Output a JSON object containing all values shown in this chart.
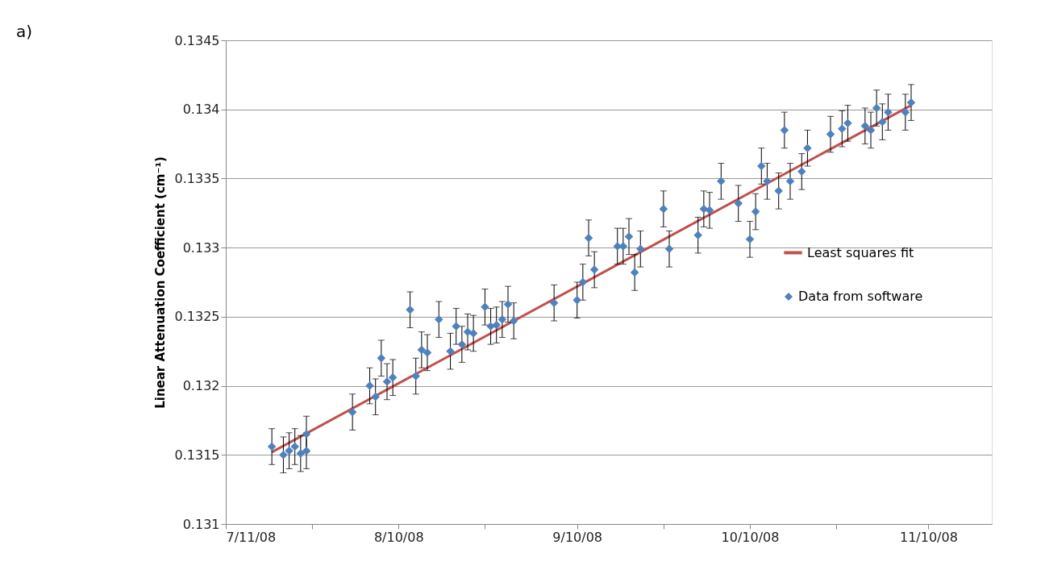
{
  "chart_data": {
    "type": "scatter",
    "ylabel": "Linear Attenuation  Coefficient (cm⁻¹)",
    "annotations": [
      "a)"
    ],
    "xlim": [
      "2008-07-11",
      "2008-11-21"
    ],
    "xticks": [
      {
        "value": "2008-07-11",
        "label": "7/11/08"
      },
      {
        "value": "2008-07-26",
        "label": null
      },
      {
        "value": "2008-08-10",
        "label": "8/10/08"
      },
      {
        "value": "2008-08-25",
        "label": null
      },
      {
        "value": "2008-09-10",
        "label": "9/10/08"
      },
      {
        "value": "2008-09-25",
        "label": null
      },
      {
        "value": "2008-10-10",
        "label": "10/10/08"
      },
      {
        "value": "2008-10-25",
        "label": null
      },
      {
        "value": "2008-11-10",
        "label": "11/10/08"
      }
    ],
    "ylim": [
      0.131,
      0.1345
    ],
    "yticks": [
      0.131,
      0.1315,
      0.132,
      0.1325,
      0.133,
      0.1335,
      0.134,
      0.1345
    ],
    "grid": "y",
    "legend": "right",
    "line_style": "solid",
    "series": [
      {
        "name": "Least squares fit",
        "type": "line",
        "color": "#c0504d",
        "x": [
          "2008-07-19",
          "2008-11-07"
        ],
        "values": [
          0.13152,
          0.13403
        ],
        "marker": "none"
      },
      {
        "name": "Data from software",
        "color": "#4f81bd",
        "marker": "diamond",
        "x": [
          "2008-07-19",
          "2008-07-21",
          "2008-07-22",
          "2008-07-23",
          "2008-07-24",
          "2008-07-25",
          "2008-07-25",
          "2008-08-02",
          "2008-08-05",
          "2008-08-06",
          "2008-08-07",
          "2008-08-08",
          "2008-08-09",
          "2008-08-12",
          "2008-08-13",
          "2008-08-14",
          "2008-08-15",
          "2008-08-17",
          "2008-08-19",
          "2008-08-20",
          "2008-08-21",
          "2008-08-22",
          "2008-08-23",
          "2008-08-25",
          "2008-08-26",
          "2008-08-27",
          "2008-08-28",
          "2008-08-29",
          "2008-08-30",
          "2008-09-06",
          "2008-09-10",
          "2008-09-11",
          "2008-09-12",
          "2008-09-13",
          "2008-09-17",
          "2008-09-18",
          "2008-09-19",
          "2008-09-20",
          "2008-09-21",
          "2008-09-25",
          "2008-09-26",
          "2008-10-01",
          "2008-10-02",
          "2008-10-03",
          "2008-10-05",
          "2008-10-08",
          "2008-10-10",
          "2008-10-11",
          "2008-10-12",
          "2008-10-13",
          "2008-10-15",
          "2008-10-16",
          "2008-10-17",
          "2008-10-19",
          "2008-10-20",
          "2008-10-24",
          "2008-10-26",
          "2008-10-27",
          "2008-10-30",
          "2008-10-31",
          "2008-11-01",
          "2008-11-02",
          "2008-11-03",
          "2008-11-06",
          "2008-11-07"
        ],
        "values": [
          0.13156,
          0.1315,
          0.13153,
          0.13156,
          0.13151,
          0.13153,
          0.13165,
          0.13181,
          0.132,
          0.13192,
          0.1322,
          0.13203,
          0.13206,
          0.13255,
          0.13207,
          0.13226,
          0.13224,
          0.13248,
          0.13225,
          0.13243,
          0.1323,
          0.13239,
          0.13238,
          0.13257,
          0.13243,
          0.13244,
          0.13248,
          0.13259,
          0.13247,
          0.1326,
          0.13262,
          0.13275,
          0.13307,
          0.13284,
          0.13301,
          0.13301,
          0.13308,
          0.13282,
          0.13299,
          0.13328,
          0.13299,
          0.13309,
          0.13328,
          0.13327,
          0.13348,
          0.13332,
          0.13306,
          0.13326,
          0.13359,
          0.13348,
          0.13341,
          0.13385,
          0.13348,
          0.13355,
          0.13372,
          0.13382,
          0.13386,
          0.1339,
          0.13388,
          0.13385,
          0.13401,
          0.13391,
          0.13398,
          0.13398,
          0.13405
        ],
        "errors": [
          0.00013,
          0.00013,
          0.00013,
          0.00013,
          0.00013,
          0.00013,
          0.00013,
          0.00013,
          0.00013,
          0.00013,
          0.00013,
          0.00013,
          0.00013,
          0.00013,
          0.00013,
          0.00013,
          0.00013,
          0.00013,
          0.00013,
          0.00013,
          0.00013,
          0.00013,
          0.00013,
          0.00013,
          0.00013,
          0.00013,
          0.00013,
          0.00013,
          0.00013,
          0.00013,
          0.00013,
          0.00013,
          0.00013,
          0.00013,
          0.00013,
          0.00013,
          0.00013,
          0.00013,
          0.00013,
          0.00013,
          0.00013,
          0.00013,
          0.00013,
          0.00013,
          0.00013,
          0.00013,
          0.00013,
          0.00013,
          0.00013,
          0.00013,
          0.00013,
          0.00013,
          0.00013,
          0.00013,
          0.00013,
          0.00013,
          0.00013,
          0.00013,
          0.00013,
          0.00013,
          0.00013,
          0.00013,
          0.00013,
          0.00013,
          0.00013
        ]
      }
    ]
  }
}
